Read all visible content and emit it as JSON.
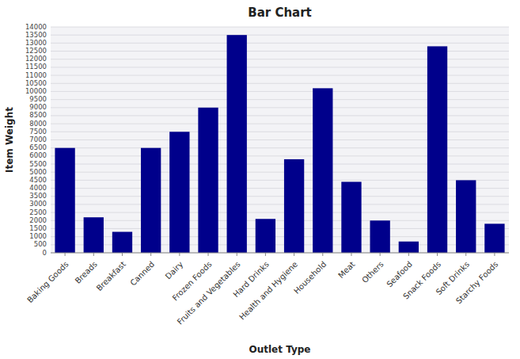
{
  "chart_data": {
    "type": "bar",
    "title": "Bar Chart",
    "xlabel": "Outlet Type",
    "ylabel": "Item Weight",
    "categories": [
      "Baking Goods",
      "Breads",
      "Breakfast",
      "Canned",
      "Dairy",
      "Frozen Foods",
      "Fruits and Vegetables",
      "Hard Drinks",
      "Health and Hygiene",
      "Household",
      "Meat",
      "Others",
      "Seafood",
      "Snack Foods",
      "Soft Drinks",
      "Starchy Foods"
    ],
    "values": [
      6500,
      2200,
      1300,
      6500,
      7500,
      9000,
      13500,
      2100,
      5800,
      10200,
      4400,
      2000,
      700,
      12800,
      4500,
      1800
    ],
    "color": "#00008B",
    "ylim": [
      0,
      14000
    ],
    "yticks": [
      0,
      500,
      1000,
      1500,
      2000,
      2500,
      3000,
      3500,
      4000,
      4500,
      5000,
      5500,
      6000,
      6500,
      7000,
      7500,
      8000,
      8500,
      9000,
      9500,
      10000,
      10500,
      11000,
      11500,
      12000,
      12500,
      13000,
      13500,
      14000
    ],
    "grid": true
  }
}
